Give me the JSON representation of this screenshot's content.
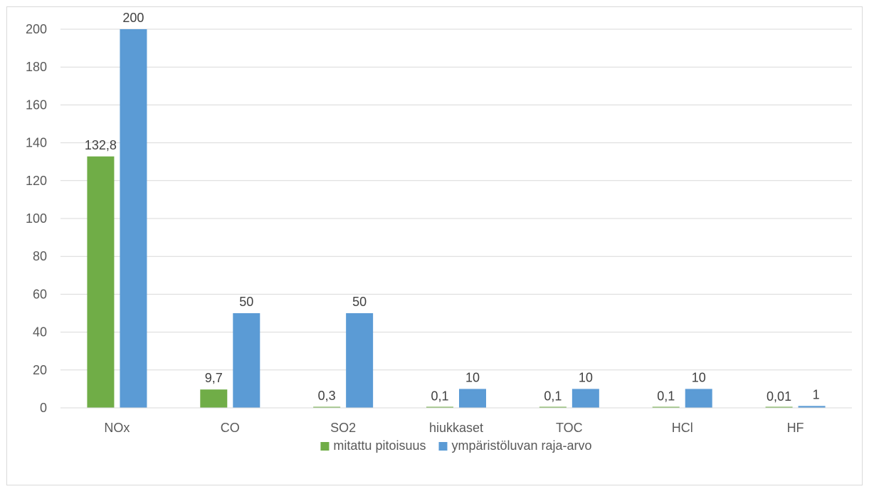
{
  "chart_data": {
    "type": "bar",
    "title": "",
    "xlabel": "",
    "ylabel": "",
    "categories": [
      "NOx",
      "CO",
      "SO2",
      "hiukkaset",
      "TOC",
      "HCl",
      "HF"
    ],
    "series": [
      {
        "name": "mitattu pitoisuus",
        "color": "#70ad47",
        "values": [
          132.8,
          9.7,
          0.3,
          0.1,
          0.1,
          0.1,
          0.01
        ],
        "labels": [
          "132,8",
          "9,7",
          "0,3",
          "0,1",
          "0,1",
          "0,1",
          "0,01"
        ]
      },
      {
        "name": "ympäristöluvan raja-arvo",
        "color": "#5b9bd5",
        "values": [
          200,
          50,
          50,
          10,
          10,
          10,
          1
        ],
        "labels": [
          "200",
          "50",
          "50",
          "10",
          "10",
          "10",
          "1"
        ]
      }
    ],
    "ylim": [
      0,
      200
    ],
    "yticks": [
      0,
      20,
      40,
      60,
      80,
      100,
      120,
      140,
      160,
      180,
      200
    ],
    "grid": true,
    "legend_position": "bottom"
  }
}
